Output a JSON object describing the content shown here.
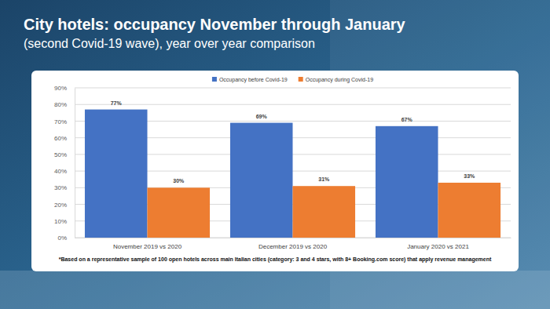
{
  "chart_data": {
    "type": "bar",
    "title": "City hotels: occupancy November through January",
    "subtitle": "(second Covid-19 wave), year over year comparison",
    "categories": [
      "November 2019 vs 2020",
      "December 2019 vs 2020",
      "January 2020 vs 2021"
    ],
    "series": [
      {
        "name": "Occupancy before Covid-19",
        "color": "#4472c4",
        "values": [
          77,
          69,
          67
        ],
        "value_labels": [
          "77%",
          "69%",
          "67%"
        ]
      },
      {
        "name": "Occupancy during Covid-19",
        "color": "#ed7d31",
        "values": [
          30,
          31,
          33
        ],
        "value_labels": [
          "30%",
          "31%",
          "33%"
        ]
      }
    ],
    "ylim": [
      0,
      90
    ],
    "yticks": [
      {
        "value": 0,
        "label": "0%"
      },
      {
        "value": 10,
        "label": "10%"
      },
      {
        "value": 20,
        "label": "20%"
      },
      {
        "value": 30,
        "label": "30%"
      },
      {
        "value": 40,
        "label": "40%"
      },
      {
        "value": 50,
        "label": "50%"
      },
      {
        "value": 60,
        "label": "60%"
      },
      {
        "value": 70,
        "label": "70%"
      },
      {
        "value": 80,
        "label": "80%"
      },
      {
        "value": 90,
        "label": "90%"
      }
    ],
    "grid": true,
    "legend": "top",
    "data_labels": true,
    "annotations": [
      "*Based on a representative sample of 100 open hotels across main Italian cities (category: 3 and 4 stars, with 8+ Booking.com score) that apply revenue management"
    ]
  }
}
